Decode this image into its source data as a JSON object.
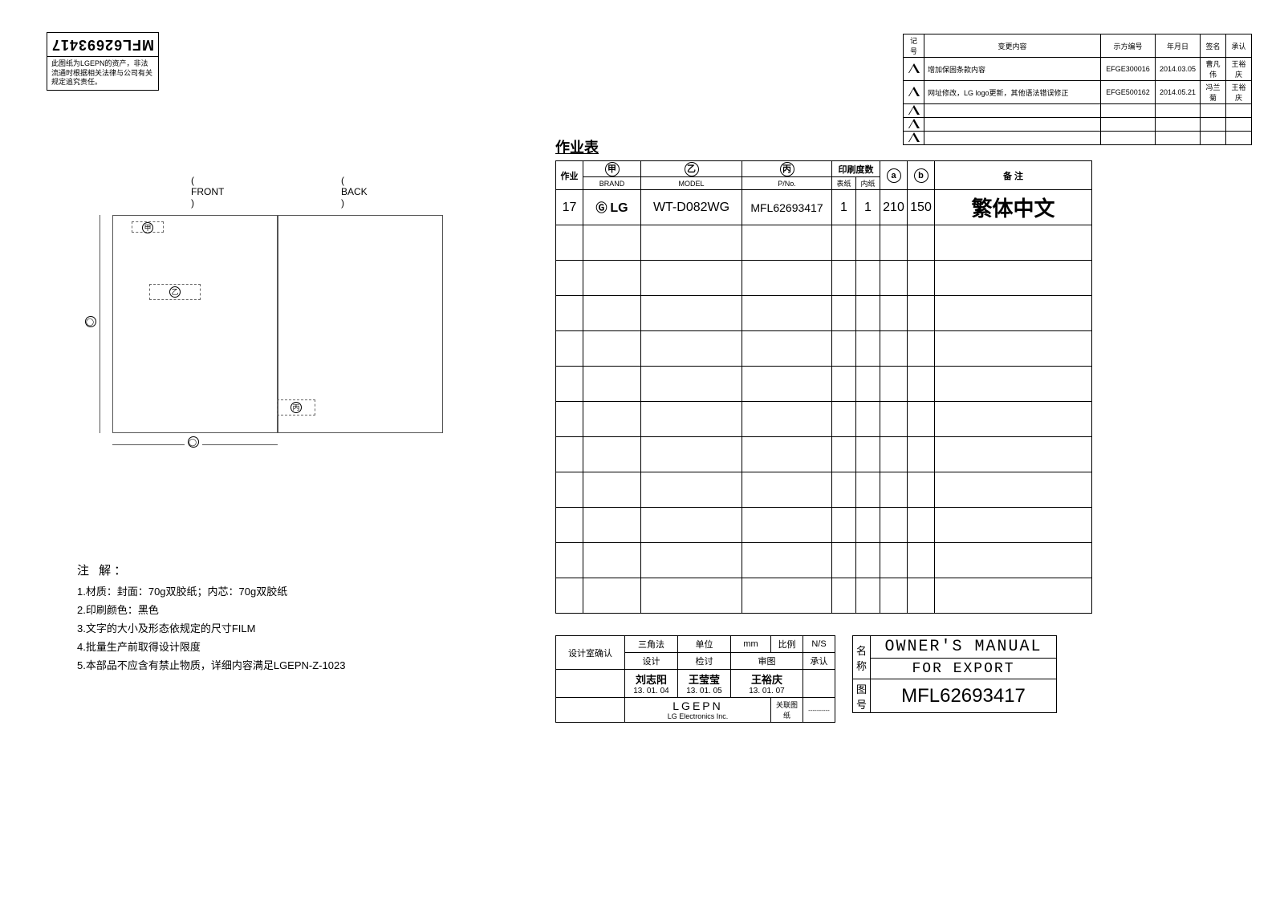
{
  "part_number": "MFL62693417",
  "disclaimer": "此图纸为LGEPN的资产，非法流通时根据相关法律与公司有关规定追究责任。",
  "revisions": {
    "headers": [
      "记号",
      "变更内容",
      "示方编号",
      "年月日",
      "签名",
      "承认"
    ],
    "rows": [
      {
        "num": "1",
        "content": "增加保固条款内容",
        "ref": "EFGE300016",
        "date": "2014.03.05",
        "sign": "曹凡伟",
        "approve": "王裕庆"
      },
      {
        "num": "2",
        "content": "网址修改，LG logo更新，其他语法错误修正",
        "ref": "EFGE500162",
        "date": "2014.05.21",
        "sign": "冯兰菊",
        "approve": "王裕庆"
      },
      {
        "num": "3",
        "content": "",
        "ref": "",
        "date": "",
        "sign": "",
        "approve": ""
      },
      {
        "num": "4",
        "content": "",
        "ref": "",
        "date": "",
        "sign": "",
        "approve": ""
      },
      {
        "num": "5",
        "content": "",
        "ref": "",
        "date": "",
        "sign": "",
        "approve": ""
      }
    ]
  },
  "fb": {
    "front": "( FRONT )",
    "back": "( BACK )"
  },
  "diagram": {
    "logo": "甲",
    "mark_a": "乙",
    "mark_b": "丙",
    "dim_o_v": "◯",
    "dim_o_h": "◯"
  },
  "notes": {
    "title": "注 解：",
    "items": [
      "1.材质：封面：70g双胶纸；内芯：70g双胶纸",
      "2.印刷颜色：黑色",
      "3.文字的大小及形态依规定的尺寸FILM",
      "4.批量生产前取得设计限度",
      "5.本部品不应含有禁止物质，详细内容满足LGEPN-Z-1023"
    ]
  },
  "work_title": "作业表",
  "work_table": {
    "empty_rows": 11,
    "headers": {
      "c0": "作业",
      "c1_top": "甲",
      "c1_sub": "BRAND",
      "c2_top": "乙",
      "c2_sub": "MODEL",
      "c3_top": "丙",
      "c3_sub": "P/No.",
      "c45_top": "印刷度数",
      "c4_sub": "表纸",
      "c5_sub": "内纸",
      "c6": "a",
      "c7": "b",
      "c8": "备  注"
    },
    "data": {
      "job": "17",
      "brand_logo": "LG",
      "model": "WT-D082WG",
      "pno": "MFL62693417",
      "cover": "1",
      "inner": "1",
      "a": "210",
      "b": "150",
      "remark": "繁体中文"
    }
  },
  "approval": {
    "label": "设计室确认",
    "row1": [
      "三角法",
      "单位",
      "mm",
      "比例",
      "N/S"
    ],
    "row2": [
      "设计",
      "检讨",
      "审图",
      "承认"
    ],
    "row3_names": [
      "刘志阳",
      "王莹莹",
      "王裕庆"
    ],
    "row3_dates": [
      "13. 01. 04",
      "13. 01. 05",
      "13. 01. 07"
    ],
    "row4_org": "LGEPN",
    "row4_sub": "LG Electronics Inc.",
    "row4_right": "关联图纸",
    "row4_dash": "----------"
  },
  "title_block": {
    "name_label": "名称",
    "name1": "OWNER'S MANUAL",
    "name2": "FOR EXPORT",
    "dwg_label": "图号",
    "dwg": "MFL62693417"
  }
}
